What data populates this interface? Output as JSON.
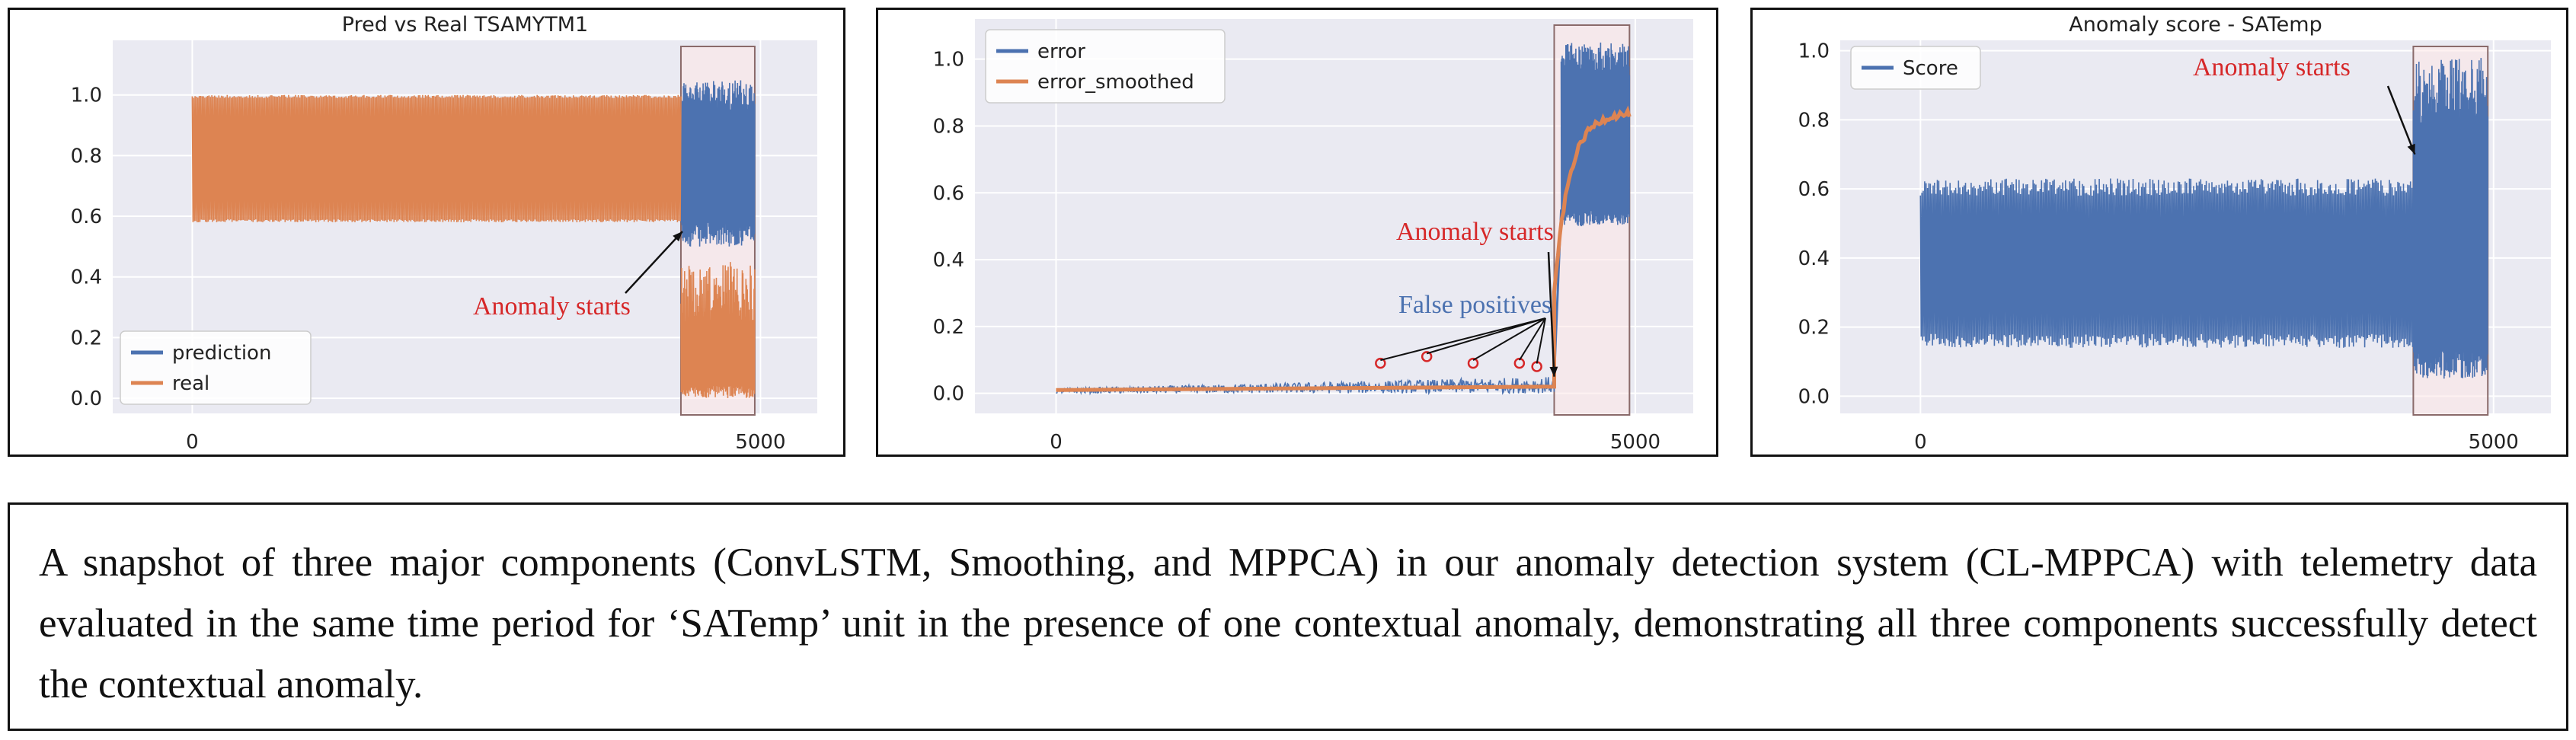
{
  "chart_data": [
    {
      "type": "line",
      "title": "Pred vs Real TSAMYTM1",
      "xlabel": "",
      "ylabel": "",
      "xlim": [
        -700,
        5500
      ],
      "ylim": [
        -0.05,
        1.18
      ],
      "xticks": [
        0,
        5000
      ],
      "yticks": [
        0.0,
        0.2,
        0.4,
        0.6,
        0.8,
        1.0
      ],
      "ytick_labels": [
        "0.0",
        "0.2",
        "0.4",
        "0.6",
        "0.8",
        "1.0"
      ],
      "grid": true,
      "legend": "lower-left",
      "series": [
        {
          "name": "prediction",
          "color": "#4c72b0",
          "x_range": [
            0,
            4950
          ],
          "band_normal": [
            0.58,
            1.0
          ],
          "band_anomaly": [
            0.5,
            1.05
          ]
        },
        {
          "name": "real",
          "color": "#dd8452",
          "x_range": [
            0,
            4950
          ],
          "band_normal": [
            0.58,
            1.0
          ],
          "band_anomaly": [
            0.0,
            0.45
          ]
        }
      ],
      "anomaly_region": [
        4300,
        4950
      ],
      "annotation": {
        "text": "Anomaly starts",
        "x": 4300,
        "y": 0.55
      }
    },
    {
      "type": "line",
      "title": "",
      "xlabel": "",
      "ylabel": "",
      "xlim": [
        -700,
        5500
      ],
      "ylim": [
        -0.06,
        1.12
      ],
      "xticks": [
        0,
        5000
      ],
      "yticks": [
        0.0,
        0.2,
        0.4,
        0.6,
        0.8,
        1.0
      ],
      "ytick_labels": [
        "0.0",
        "0.2",
        "0.4",
        "0.6",
        "0.8",
        "1.0"
      ],
      "grid": true,
      "legend": "top-left",
      "series": [
        {
          "name": "error",
          "color": "#4c72b0",
          "x_range": [
            0,
            4950
          ],
          "level_normal": [
            0.0,
            0.05
          ],
          "level_anomaly": [
            0.5,
            1.05
          ]
        },
        {
          "name": "error_smoothed",
          "color": "#dd8452",
          "x_range": [
            0,
            4950
          ],
          "level_normal": [
            0.0,
            0.02
          ],
          "level_anomaly": [
            0.3,
            0.84
          ]
        }
      ],
      "anomaly_region": [
        4300,
        4950
      ],
      "annotations": [
        {
          "text": "Anomaly starts",
          "x": 4300,
          "y": 0.05
        },
        {
          "text": "False positives",
          "points": [
            [
              2800,
              0.09
            ],
            [
              3200,
              0.11
            ],
            [
              3600,
              0.09
            ],
            [
              4000,
              0.09
            ],
            [
              4150,
              0.08
            ]
          ]
        }
      ]
    },
    {
      "type": "line",
      "title": "Anomaly score - SATemp",
      "xlabel": "",
      "ylabel": "",
      "xlim": [
        -700,
        5500
      ],
      "ylim": [
        -0.05,
        1.03
      ],
      "xticks": [
        0,
        5000
      ],
      "yticks": [
        0.0,
        0.2,
        0.4,
        0.6,
        0.8,
        1.0
      ],
      "ytick_labels": [
        "0.0",
        "0.2",
        "0.4",
        "0.6",
        "0.8",
        "1.0"
      ],
      "grid": true,
      "legend": "top-left",
      "series": [
        {
          "name": "Score",
          "color": "#4c72b0",
          "x_range": [
            0,
            4950
          ],
          "band_normal": [
            0.14,
            0.63
          ],
          "band_anomaly": [
            0.05,
            0.98
          ]
        }
      ],
      "anomaly_region": [
        4300,
        4950
      ],
      "annotation": {
        "text": "Anomaly starts",
        "x": 4300,
        "y": 0.7
      }
    }
  ],
  "caption": "A snapshot of three major components (ConvLSTM, Smoothing, and MPPCA) in our anomaly detection system (CL-MPPCA) with telemetry data evaluated in the same time period for ‘SATemp’ unit in the presence of one contextual anomaly, demonstrating all three components successfully detect the contextual anomaly."
}
